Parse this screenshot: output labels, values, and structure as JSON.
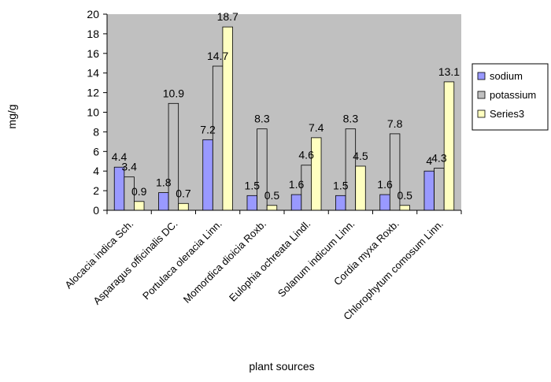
{
  "chart_data": {
    "type": "bar",
    "title": "",
    "xlabel": "plant sources",
    "ylabel": "mg/g",
    "ylim": [
      0,
      20
    ],
    "yticks": [
      0,
      2,
      4,
      6,
      8,
      10,
      12,
      14,
      16,
      18,
      20
    ],
    "grid": false,
    "legend_position": "right",
    "plot_background": "#c0c0c0",
    "categories": [
      "Alocacia indica Sch.",
      "Asparagus officinalis DC.",
      "Portulaca oleracia Linn.",
      "Momordica dioicia Roxb.",
      "Eulophia ochreata Lindl.",
      "Solanum indicum Linn.",
      "Cordia myxa Roxb.",
      "Chlorophytum comosum Linn."
    ],
    "series": [
      {
        "name": "sodium",
        "color": "#9999ff",
        "values": [
          4.4,
          1.8,
          7.2,
          1.5,
          1.6,
          1.5,
          1.6,
          4
        ]
      },
      {
        "name": "potassium",
        "color": "#c0c0c0",
        "values": [
          3.4,
          10.9,
          14.7,
          8.3,
          4.6,
          8.3,
          7.8,
          4.3
        ]
      },
      {
        "name": "Series3",
        "color": "#ffffc0",
        "values": [
          0.9,
          0.7,
          18.7,
          0.5,
          7.4,
          4.5,
          0.5,
          13.1
        ]
      }
    ]
  }
}
